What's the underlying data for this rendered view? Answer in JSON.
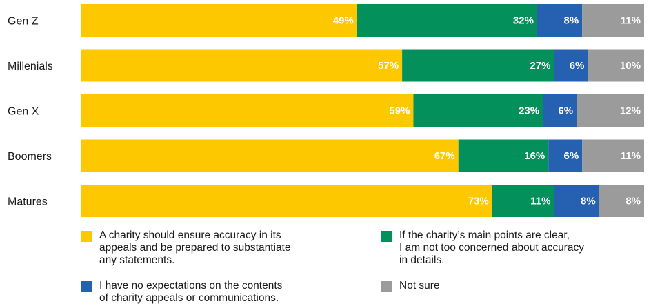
{
  "chart_data": {
    "type": "bar",
    "orientation": "horizontal",
    "stacked": true,
    "categories": [
      "Gen Z",
      "Millenials",
      "Gen X",
      "Boomers",
      "Matures"
    ],
    "series": [
      {
        "name": "A charity should ensure accuracy in its appeals and be prepared to substantiate any statements.",
        "color": "#FDC800",
        "values": [
          49,
          57,
          59,
          67,
          73
        ]
      },
      {
        "name": "If the charity's main points are clear, I am not too concerned about accuracy in details.",
        "color": "#04905A",
        "values": [
          32,
          27,
          23,
          16,
          11
        ]
      },
      {
        "name": "I have no expectations on the contents of charity appeals or communications.",
        "color": "#2660B0",
        "values": [
          8,
          6,
          6,
          6,
          8
        ]
      },
      {
        "name": "Not sure",
        "color": "#9B9B9B",
        "values": [
          11,
          10,
          12,
          11,
          8
        ]
      }
    ],
    "value_suffix": "%",
    "legend_position": "bottom",
    "grid": false
  },
  "legend": [
    {
      "label": "A charity should ensure accuracy in its\nappeals and be prepared to substantiate\nany statements.",
      "color": "#FDC800"
    },
    {
      "label": "If the charity’s main points are clear,\nI am not too concerned about accuracy\nin details.",
      "color": "#04905A"
    },
    {
      "label": "I have no expectations on the contents\nof charity appeals or communications.",
      "color": "#2660B0"
    },
    {
      "label": "Not sure",
      "color": "#9B9B9B"
    }
  ]
}
